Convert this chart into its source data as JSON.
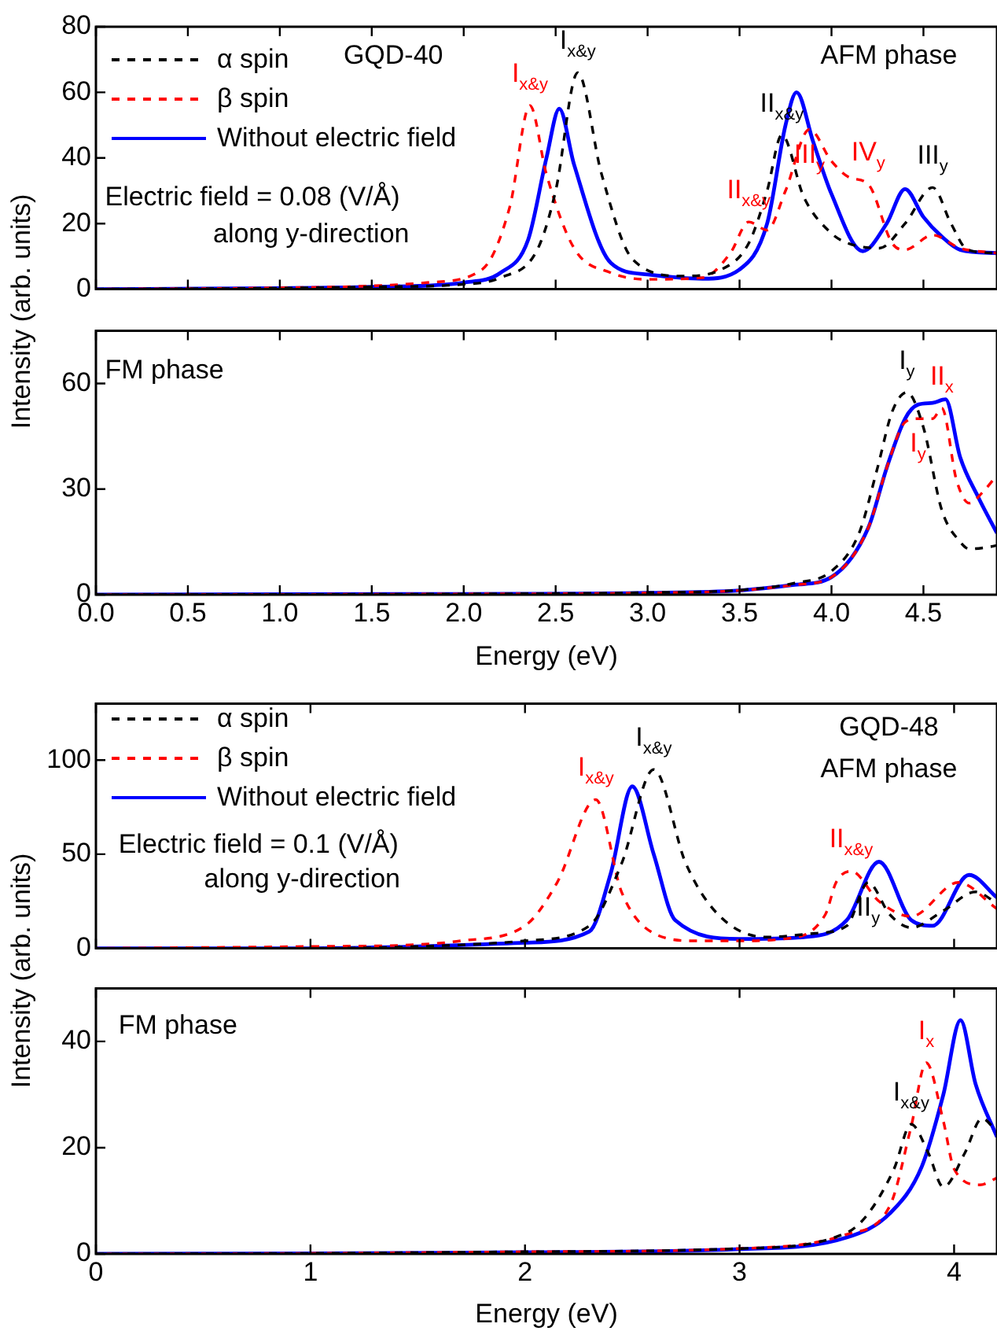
{
  "chart_data": [
    {
      "type": "line",
      "xlim": [
        0,
        4.9
      ],
      "xticks": [
        0,
        0.5,
        1,
        1.5,
        2,
        2.5,
        3,
        3.5,
        4,
        4.5
      ],
      "ylim": [
        0,
        80
      ],
      "yticks": [
        0,
        20,
        40,
        60,
        80
      ],
      "tick_labels": "y",
      "legend": "top left",
      "marker": "none",
      "grid": false,
      "series": [
        {
          "name": "α spin",
          "color": "#000000",
          "line_style": "dashed",
          "x": [
            0,
            1.0,
            1.5,
            2.0,
            2.2,
            2.4,
            2.5,
            2.62,
            2.75,
            2.92,
            3.19,
            3.4,
            3.55,
            3.65,
            3.73,
            3.85,
            4.0,
            4.09,
            4.26,
            4.4,
            4.55,
            4.65,
            4.74,
            4.9
          ],
          "values": [
            0,
            0.3,
            0.7,
            1.5,
            3.5,
            12,
            30,
            66,
            35,
            9,
            4,
            6,
            14,
            30,
            47,
            28,
            17,
            14,
            12.5,
            20,
            31,
            20,
            12,
            11
          ]
        },
        {
          "name": "β spin",
          "color": "#ff0000",
          "line_style": "dashed",
          "x": [
            0,
            1.0,
            1.5,
            1.8,
            2.1,
            2.25,
            2.36,
            2.45,
            2.6,
            2.8,
            3.0,
            3.3,
            3.45,
            3.55,
            3.65,
            3.75,
            3.88,
            4.0,
            4.1,
            4.2,
            4.33,
            4.4,
            4.55,
            4.7,
            4.9
          ],
          "values": [
            0,
            0.4,
            1,
            2,
            6,
            25,
            56,
            35,
            12.5,
            5,
            3,
            3.5,
            11,
            20.5,
            18,
            30,
            48.7,
            39,
            34,
            32,
            14,
            12,
            16.5,
            12.5,
            11
          ]
        },
        {
          "name": "Without electric field",
          "color": "#0000ff",
          "line_style": "solid",
          "x": [
            0,
            1.0,
            1.5,
            2.0,
            2.2,
            2.35,
            2.45,
            2.52,
            2.6,
            2.8,
            3.0,
            3.3,
            3.5,
            3.65,
            3.75,
            3.81,
            3.9,
            4.0,
            4.17,
            4.3,
            4.4,
            4.5,
            4.6,
            4.7,
            4.9
          ],
          "values": [
            0,
            0.3,
            0.7,
            2,
            5,
            15,
            40,
            55,
            38,
            8,
            4.5,
            3.2,
            6,
            20,
            50,
            60,
            45,
            29,
            11.6,
            20,
            30.5,
            22,
            16,
            12,
            11
          ]
        }
      ],
      "annotations": [
        "GQD-40",
        "AFM phase",
        "Electric field = 0.08 (V/Å)",
        "along y-direction",
        {
          "text": "I$_{x&y}$",
          "x": 2.62,
          "y": 66
        },
        {
          "text": "I$_{x&y}$",
          "x": 2.36,
          "y": 56
        },
        {
          "text": "II$_{x&y}$",
          "x": 3.73,
          "y": 47
        },
        {
          "text": "II$_{x&y}$",
          "x": 3.55,
          "y": 20.5
        },
        {
          "text": "III$_{y}$",
          "x": 3.88,
          "y": 48.7
        },
        {
          "text": "IV$_{y}$",
          "x": 4.2,
          "y": 32
        },
        {
          "text": "III$_{y}$",
          "x": 4.55,
          "y": 31
        }
      ]
    },
    {
      "type": "line",
      "xlim": [
        0,
        4.9
      ],
      "xticks": [
        {
          "value": 0,
          "label": "0.0"
        },
        0.5,
        {
          "value": 1,
          "label": "1.0"
        },
        1.5,
        {
          "value": 2,
          "label": "2.0"
        },
        2.5,
        {
          "value": 3,
          "label": "3.0"
        },
        3.5,
        {
          "value": 4,
          "label": "4.0"
        },
        4.5
      ],
      "ylim": [
        0,
        75
      ],
      "yticks": [
        0,
        30,
        60
      ],
      "xlabel": "Energy (eV)",
      "ylabel": "Intensity (arb. units)",
      "marker": "none",
      "grid": false,
      "series": [
        {
          "color": "#000000",
          "line_style": "dashed",
          "x": [
            0,
            2.0,
            3.0,
            3.5,
            3.8,
            4.0,
            4.15,
            4.25,
            4.33,
            4.41,
            4.5,
            4.6,
            4.7,
            4.75,
            4.85,
            4.9
          ],
          "values": [
            0,
            0.2,
            0.6,
            1.3,
            3.3,
            6.7,
            17.5,
            36,
            52,
            57.5,
            47.5,
            24,
            15,
            13,
            13.5,
            14
          ]
        },
        {
          "color": "#ff0000",
          "line_style": "dashed",
          "x": [
            0,
            2.0,
            3.0,
            3.5,
            3.8,
            4.0,
            4.2,
            4.3,
            4.4,
            4.47,
            4.55,
            4.6,
            4.68,
            4.75,
            4.82,
            4.9
          ],
          "values": [
            0,
            0.2,
            0.5,
            1.2,
            2.8,
            5,
            19,
            36,
            49,
            50,
            50,
            53,
            32.5,
            26,
            29,
            34
          ]
        },
        {
          "color": "#0000ff",
          "line_style": "solid",
          "x": [
            0,
            2.0,
            3.0,
            3.5,
            3.8,
            4.0,
            4.2,
            4.3,
            4.4,
            4.47,
            4.55,
            4.62,
            4.7,
            4.8,
            4.9
          ],
          "values": [
            0,
            0.2,
            0.5,
            1.2,
            2.8,
            5,
            19,
            36,
            50,
            54,
            54.5,
            55.5,
            39,
            27.5,
            17.5
          ]
        }
      ],
      "annotations": [
        "FM phase",
        {
          "text": "I$_{y}$",
          "x": 4.41,
          "y": 57.5
        },
        {
          "text": "I$_{y}$",
          "x": 4.47,
          "y": 50
        },
        {
          "text": "II$_{x}$",
          "x": 4.6,
          "y": 53
        }
      ]
    },
    {
      "type": "line",
      "xlim": [
        0,
        4.2
      ],
      "xticks": [
        0,
        1,
        2,
        3,
        4
      ],
      "ylim": [
        0,
        130
      ],
      "yticks": [
        0,
        50,
        100
      ],
      "tick_labels": "y",
      "legend": "top left",
      "marker": "none",
      "grid": false,
      "series": [
        {
          "name": "α spin",
          "color": "#000000",
          "line_style": "dashed",
          "x": [
            0,
            1.0,
            1.5,
            2.0,
            2.3,
            2.45,
            2.6,
            2.75,
            2.9,
            3.12,
            3.35,
            3.5,
            3.6,
            3.7,
            3.8,
            3.95,
            4.1,
            4.2
          ],
          "values": [
            0,
            0,
            1,
            4,
            12,
            45,
            95,
            45,
            18,
            6,
            8,
            12,
            35,
            18,
            11,
            20,
            30,
            24
          ]
        },
        {
          "name": "β spin",
          "color": "#ff0000",
          "line_style": "dashed",
          "x": [
            0,
            1.0,
            1.5,
            1.7,
            2.0,
            2.15,
            2.33,
            2.45,
            2.6,
            2.8,
            3.0,
            3.2,
            3.4,
            3.45,
            3.52,
            3.65,
            3.8,
            4.02,
            4.2
          ],
          "values": [
            0,
            1,
            2,
            4,
            12,
            35,
            79,
            30,
            8,
            4,
            4,
            5,
            18,
            35,
            41,
            25,
            17,
            35,
            21
          ]
        },
        {
          "name": "Without electric field",
          "color": "#0000ff",
          "line_style": "solid",
          "x": [
            0,
            1.0,
            1.5,
            2.0,
            2.3,
            2.4,
            2.5,
            2.6,
            2.7,
            3.0,
            3.3,
            3.5,
            3.65,
            3.8,
            3.9,
            4.07,
            4.2
          ],
          "values": [
            0,
            0,
            1,
            3,
            9,
            40,
            86,
            50,
            15,
            5,
            6,
            15,
            46,
            15,
            12,
            39,
            27
          ]
        }
      ],
      "annotations": [
        "GQD-48",
        "AFM phase",
        "Electric field = 0.1 (V/Å)",
        "along y-direction",
        {
          "text": "I$_{x&y}$",
          "x": 2.6,
          "y": 95
        },
        {
          "text": "I$_{x&y}$",
          "x": 2.33,
          "y": 79
        },
        {
          "text": "II$_{x&y}$",
          "x": 3.52,
          "y": 41
        },
        {
          "text": "II$_{y}$",
          "x": 3.6,
          "y": 35
        }
      ]
    },
    {
      "type": "line",
      "xlim": [
        0,
        4.2
      ],
      "xticks": [
        0,
        1,
        2,
        3,
        4
      ],
      "ylim": [
        0,
        50
      ],
      "yticks": [
        0,
        20,
        40
      ],
      "xlabel": "Energy (eV)",
      "ylabel": "Intensity (arb. units)",
      "marker": "none",
      "grid": false,
      "series": [
        {
          "color": "#000000",
          "line_style": "dashed",
          "x": [
            0,
            1,
            2,
            3.0,
            3.5,
            3.6,
            3.72,
            3.8,
            3.88,
            3.95,
            4.05,
            4.13,
            4.2
          ],
          "values": [
            0,
            0.1,
            0.4,
            1,
            4,
            7.6,
            16,
            24.4,
            19,
            12.6,
            19,
            25.5,
            23
          ]
        },
        {
          "color": "#ff0000",
          "line_style": "dashed",
          "x": [
            0,
            1,
            2,
            3.0,
            3.5,
            3.7,
            3.8,
            3.87,
            3.95,
            4.0,
            4.12,
            4.2
          ],
          "values": [
            0,
            0.1,
            0.4,
            1,
            3.7,
            9,
            24,
            36,
            25,
            16,
            13,
            14.3
          ]
        },
        {
          "color": "#0000ff",
          "line_style": "solid",
          "x": [
            0,
            1,
            2,
            3.0,
            3.5,
            3.7,
            3.85,
            3.95,
            4.03,
            4.1,
            4.2
          ],
          "values": [
            0,
            0.1,
            0.3,
            0.9,
            3.1,
            7.6,
            16.5,
            30,
            44,
            32,
            22
          ]
        }
      ],
      "annotations": [
        "FM phase",
        {
          "text": "I$_{x}$",
          "x": 3.87,
          "y": 36
        },
        {
          "text": "I$_{x&y}$",
          "x": 3.8,
          "y": 24.4
        }
      ]
    }
  ]
}
